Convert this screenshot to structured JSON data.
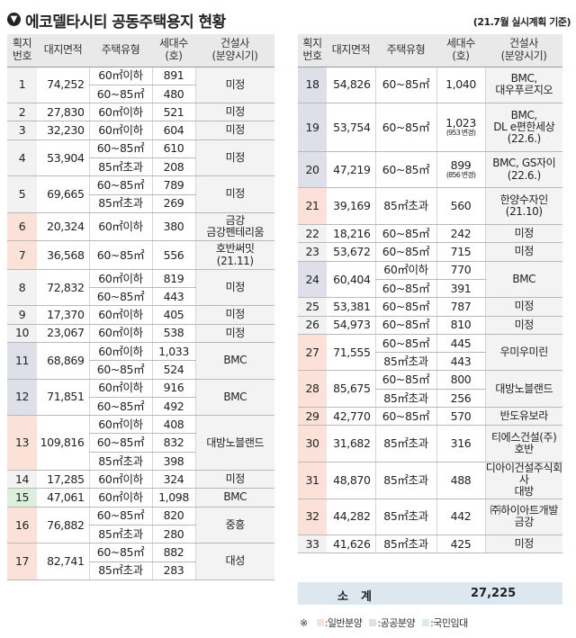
{
  "header": {
    "title_icon": "▼",
    "title": "에코델타시티 공동주택용지 현황",
    "basis": "(21.7월 실시계획 기준)"
  },
  "columns": {
    "lot_no": "획지\n번호",
    "area": "대지면적",
    "type": "주택유형",
    "units": "세대수\n(호)",
    "builder": "건설사\n(분양시기)"
  },
  "colors": {
    "general": "#fbe1d7",
    "public": "#dedfe8",
    "rental": "#dcefdc"
  },
  "left_lots": [
    {
      "no": "1",
      "area": "74,252",
      "group": "",
      "builder": "미정",
      "rows": [
        {
          "type": "60㎡이하",
          "units": "891"
        },
        {
          "type": "60~85㎡",
          "units": "480"
        }
      ]
    },
    {
      "no": "2",
      "area": "27,830",
      "group": "",
      "builder": "미정",
      "rows": [
        {
          "type": "60㎡이하",
          "units": "521"
        }
      ]
    },
    {
      "no": "3",
      "area": "32,230",
      "group": "",
      "builder": "미정",
      "rows": [
        {
          "type": "60㎡이하",
          "units": "604"
        }
      ]
    },
    {
      "no": "4",
      "area": "53,904",
      "group": "",
      "builder": "미정",
      "rows": [
        {
          "type": "60~85㎡",
          "units": "610"
        },
        {
          "type": "85㎡초과",
          "units": "208"
        }
      ]
    },
    {
      "no": "5",
      "area": "69,665",
      "group": "",
      "builder": "미정",
      "rows": [
        {
          "type": "60~85㎡",
          "units": "789"
        },
        {
          "type": "85㎡초과",
          "units": "269"
        }
      ]
    },
    {
      "no": "6",
      "area": "20,324",
      "group": "general",
      "builder": "금강\n금강펜테리움",
      "rows": [
        {
          "type": "60㎡이하",
          "units": "380"
        }
      ]
    },
    {
      "no": "7",
      "area": "36,568",
      "group": "general",
      "builder": "호반써밋\n(21.11)",
      "rows": [
        {
          "type": "60~85㎡",
          "units": "556"
        }
      ]
    },
    {
      "no": "8",
      "area": "72,832",
      "group": "",
      "builder": "미정",
      "rows": [
        {
          "type": "60㎡이하",
          "units": "819"
        },
        {
          "type": "60~85㎡",
          "units": "443"
        }
      ]
    },
    {
      "no": "9",
      "area": "17,370",
      "group": "",
      "builder": "미정",
      "rows": [
        {
          "type": "60㎡이하",
          "units": "405"
        }
      ]
    },
    {
      "no": "10",
      "area": "23,067",
      "group": "",
      "builder": "미정",
      "rows": [
        {
          "type": "60㎡이하",
          "units": "538"
        }
      ]
    },
    {
      "no": "11",
      "area": "68,869",
      "group": "public",
      "builder": "BMC",
      "rows": [
        {
          "type": "60㎡이하",
          "units": "1,033"
        },
        {
          "type": "60~85㎡",
          "units": "524"
        }
      ]
    },
    {
      "no": "12",
      "area": "71,851",
      "group": "public",
      "builder": "BMC",
      "rows": [
        {
          "type": "60㎡이하",
          "units": "916"
        },
        {
          "type": "60~85㎡",
          "units": "492"
        }
      ]
    },
    {
      "no": "13",
      "area": "109,816",
      "group": "general",
      "builder": "대방노블랜드",
      "rows": [
        {
          "type": "60㎡이하",
          "units": "408"
        },
        {
          "type": "60~85㎡",
          "units": "832"
        },
        {
          "type": "85㎡초과",
          "units": "398"
        }
      ]
    },
    {
      "no": "14",
      "area": "17,285",
      "group": "",
      "builder": "미정",
      "rows": [
        {
          "type": "60㎡이하",
          "units": "324"
        }
      ]
    },
    {
      "no": "15",
      "area": "47,061",
      "group": "rental",
      "builder": "BMC",
      "rows": [
        {
          "type": "60㎡이하",
          "units": "1,098"
        }
      ]
    },
    {
      "no": "16",
      "area": "76,882",
      "group": "general",
      "builder": "중흥",
      "rows": [
        {
          "type": "60~85㎡",
          "units": "820"
        },
        {
          "type": "85㎡초과",
          "units": "280"
        }
      ]
    },
    {
      "no": "17",
      "area": "82,741",
      "group": "general",
      "builder": "대성",
      "rows": [
        {
          "type": "60~85㎡",
          "units": "882"
        },
        {
          "type": "85㎡초과",
          "units": "283"
        }
      ]
    }
  ],
  "right_lots": [
    {
      "no": "18",
      "area": "54,826",
      "group": "public",
      "builder": "BMC,\n대우푸르지오",
      "rows": [
        {
          "type": "60~85㎡",
          "units": "1,040"
        }
      ]
    },
    {
      "no": "19",
      "area": "53,754",
      "group": "public",
      "builder": "BMC,\nDL e편한세상\n(22.6.)",
      "rows": [
        {
          "type": "60~85㎡",
          "units": "1,023",
          "note": "(953 변경)"
        }
      ]
    },
    {
      "no": "20",
      "area": "47,219",
      "group": "public",
      "builder": "BMC, GS자이\n(22.6.)",
      "rows": [
        {
          "type": "60~85㎡",
          "units": "899",
          "note": "(856 변경)"
        }
      ]
    },
    {
      "no": "21",
      "area": "39,169",
      "group": "general",
      "builder": "한양수자인\n(21.10)",
      "rows": [
        {
          "type": "85㎡초과",
          "units": "560"
        }
      ]
    },
    {
      "no": "22",
      "area": "18,216",
      "group": "",
      "builder": "미정",
      "rows": [
        {
          "type": "60~85㎡",
          "units": "242"
        }
      ]
    },
    {
      "no": "23",
      "area": "53,672",
      "group": "",
      "builder": "미정",
      "rows": [
        {
          "type": "60~85㎡",
          "units": "715"
        }
      ]
    },
    {
      "no": "24",
      "area": "60,404",
      "group": "public",
      "builder": "BMC",
      "rows": [
        {
          "type": "60㎡이하",
          "units": "770"
        },
        {
          "type": "60~85㎡",
          "units": "391"
        }
      ]
    },
    {
      "no": "25",
      "area": "53,381",
      "group": "",
      "builder": "미정",
      "rows": [
        {
          "type": "60~85㎡",
          "units": "787"
        }
      ]
    },
    {
      "no": "26",
      "area": "54,973",
      "group": "",
      "builder": "미정",
      "rows": [
        {
          "type": "60~85㎡",
          "units": "810"
        }
      ]
    },
    {
      "no": "27",
      "area": "71,555",
      "group": "general",
      "builder": "우미우미린",
      "rows": [
        {
          "type": "60~85㎡",
          "units": "445"
        },
        {
          "type": "85㎡초과",
          "units": "443"
        }
      ]
    },
    {
      "no": "28",
      "area": "85,675",
      "group": "general",
      "builder": "대방노블랜드",
      "rows": [
        {
          "type": "60~85㎡",
          "units": "800"
        },
        {
          "type": "85㎡초과",
          "units": "256"
        }
      ]
    },
    {
      "no": "29",
      "area": "42,770",
      "group": "general",
      "builder": "반도유보라",
      "rows": [
        {
          "type": "60~85㎡",
          "units": "570"
        }
      ]
    },
    {
      "no": "30",
      "area": "31,682",
      "group": "general",
      "builder": "티에스건설(주)\n호반",
      "rows": [
        {
          "type": "85㎡초과",
          "units": "316"
        }
      ]
    },
    {
      "no": "31",
      "area": "48,870",
      "group": "general",
      "builder": "디아이건설주식회사\n대방",
      "rows": [
        {
          "type": "85㎡초과",
          "units": "488"
        }
      ]
    },
    {
      "no": "32",
      "area": "44,282",
      "group": "general",
      "builder": "㈜하이아트개발\n금강",
      "rows": [
        {
          "type": "85㎡초과",
          "units": "442"
        }
      ]
    },
    {
      "no": "33",
      "area": "41,626",
      "group": "",
      "builder": "미정",
      "rows": [
        {
          "type": "85㎡초과",
          "units": "425"
        }
      ]
    }
  ],
  "subtotal": {
    "label": "소계",
    "value": "27,225"
  },
  "legend": {
    "mark": "※",
    "items": [
      {
        "label": ":일반분양",
        "group": "general"
      },
      {
        "label": ":공공분양",
        "group": "public"
      },
      {
        "label": ":국민임대",
        "group": "rental"
      }
    ]
  }
}
